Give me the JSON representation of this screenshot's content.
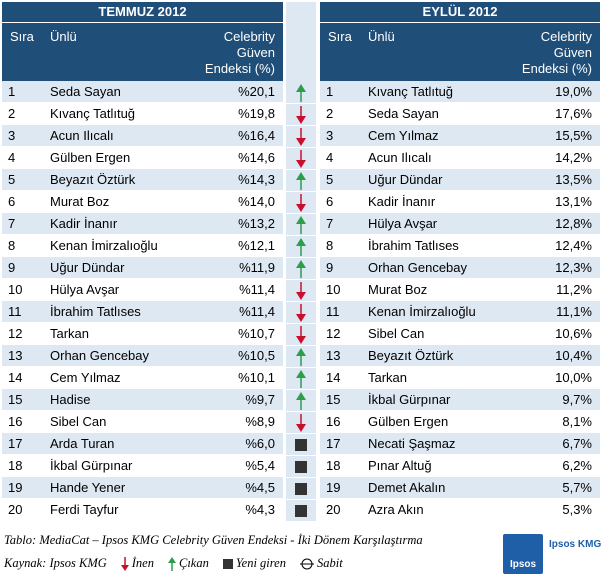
{
  "colors": {
    "header_bg": "#1f4e79",
    "row_alt": "#dde8f3",
    "arrow_up": "#2e9e4a",
    "arrow_down": "#c8102e",
    "square": "#333333"
  },
  "left": {
    "title": "TEMMUZ 2012",
    "col_rank": "Sıra",
    "col_name": "Ünlü",
    "col_value": [
      "Celebrity",
      "Güven",
      "Endeksi (%)"
    ],
    "rows": [
      {
        "rank": "1",
        "name": "Seda Sayan",
        "value": "%20,1"
      },
      {
        "rank": "2",
        "name": "Kıvanç Tatlıtuğ",
        "value": "%19,8"
      },
      {
        "rank": "3",
        "name": "Acun Ilıcalı",
        "value": "%16,4"
      },
      {
        "rank": "4",
        "name": "Gülben Ergen",
        "value": "%14,6"
      },
      {
        "rank": "5",
        "name": "Beyazıt Öztürk",
        "value": "%14,3"
      },
      {
        "rank": "6",
        "name": "Murat Boz",
        "value": "%14,0"
      },
      {
        "rank": "7",
        "name": "Kadir İnanır",
        "value": "%13,2"
      },
      {
        "rank": "8",
        "name": "Kenan İmirzalıoğlu",
        "value": "%12,1"
      },
      {
        "rank": "9",
        "name": "Uğur Dündar",
        "value": "%11,9"
      },
      {
        "rank": "10",
        "name": "Hülya Avşar",
        "value": "%11,4"
      },
      {
        "rank": "11",
        "name": "İbrahim Tatlıses",
        "value": "%11,4"
      },
      {
        "rank": "12",
        "name": "Tarkan",
        "value": "%10,7"
      },
      {
        "rank": "13",
        "name": "Orhan Gencebay",
        "value": "%10,5"
      },
      {
        "rank": "14",
        "name": "Cem Yılmaz",
        "value": "%10,1"
      },
      {
        "rank": "15",
        "name": "Hadise",
        "value": "%9,7"
      },
      {
        "rank": "16",
        "name": "Sibel Can",
        "value": "%8,9"
      },
      {
        "rank": "17",
        "name": "Arda Turan",
        "value": "%6,0"
      },
      {
        "rank": "18",
        "name": "İkbal Gürpınar",
        "value": "%5,4"
      },
      {
        "rank": "19",
        "name": "Hande Yener",
        "value": "%4,5"
      },
      {
        "rank": "20",
        "name": "Ferdi Tayfur",
        "value": "%4,3"
      }
    ]
  },
  "markers": [
    "up",
    "down",
    "down",
    "down",
    "up",
    "down",
    "up",
    "up",
    "up",
    "down",
    "down",
    "down",
    "up",
    "up",
    "up",
    "down",
    "square",
    "square",
    "square",
    "square"
  ],
  "right": {
    "title": "EYLÜL 2012",
    "col_rank": "Sıra",
    "col_name": "Ünlü",
    "col_value": [
      "Celebrity",
      "Güven",
      "Endeksi (%)"
    ],
    "rows": [
      {
        "rank": "1",
        "name": "Kıvanç Tatlıtuğ",
        "value": "19,0%"
      },
      {
        "rank": "2",
        "name": "Seda Sayan",
        "value": "17,6%"
      },
      {
        "rank": "3",
        "name": "Cem Yılmaz",
        "value": "15,5%"
      },
      {
        "rank": "4",
        "name": "Acun Ilıcalı",
        "value": "14,2%"
      },
      {
        "rank": "5",
        "name": "Uğur Dündar",
        "value": "13,5%"
      },
      {
        "rank": "6",
        "name": "Kadir İnanır",
        "value": "13,1%"
      },
      {
        "rank": "7",
        "name": "Hülya Avşar",
        "value": "12,8%"
      },
      {
        "rank": "8",
        "name": "İbrahim Tatlıses",
        "value": "12,4%"
      },
      {
        "rank": "9",
        "name": "Orhan Gencebay",
        "value": "12,3%"
      },
      {
        "rank": "10",
        "name": "Murat Boz",
        "value": "11,2%"
      },
      {
        "rank": "11",
        "name": "Kenan İmirzalıoğlu",
        "value": "11,1%"
      },
      {
        "rank": "12",
        "name": "Sibel Can",
        "value": "10,6%"
      },
      {
        "rank": "13",
        "name": "Beyazıt Öztürk",
        "value": "10,4%"
      },
      {
        "rank": "14",
        "name": "Tarkan",
        "value": "10,0%"
      },
      {
        "rank": "15",
        "name": "İkbal Gürpınar",
        "value": "9,7%"
      },
      {
        "rank": "16",
        "name": "Gülben Ergen",
        "value": "8,1%"
      },
      {
        "rank": "17",
        "name": "Necati Şaşmaz",
        "value": "6,7%"
      },
      {
        "rank": "18",
        "name": "Pınar Altuğ",
        "value": "6,2%"
      },
      {
        "rank": "19",
        "name": "Demet Akalın",
        "value": "5,7%"
      },
      {
        "rank": "20",
        "name": "Azra Akın",
        "value": "5,3%"
      }
    ]
  },
  "caption": "Tablo: MediaCat – Ipsos KMG Celebrity Güven Endeksi - İki Dönem Karşılaştırma",
  "source": "Kaynak: Ipsos KMG",
  "legend": {
    "down": "İnen",
    "up": "Çıkan",
    "new": "Yeni giren",
    "stable": "Sabit"
  },
  "logo": {
    "mark": "Ipsos",
    "text": "Ipsos KMG"
  }
}
